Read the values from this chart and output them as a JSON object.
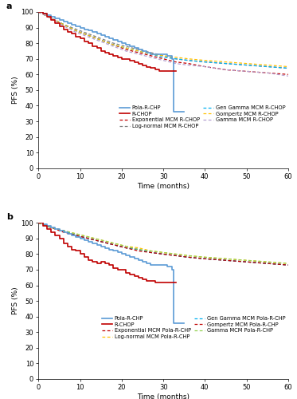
{
  "panel_a": {
    "title": "a",
    "pola_rchp_km": {
      "x": [
        0,
        1,
        2,
        3,
        4,
        5,
        6,
        7,
        8,
        9,
        10,
        11,
        12,
        13,
        14,
        15,
        16,
        17,
        18,
        19,
        20,
        21,
        22,
        23,
        24,
        25,
        26,
        27,
        28,
        29,
        30,
        31,
        32,
        32.5,
        33,
        34,
        35
      ],
      "y": [
        100,
        99,
        98,
        97,
        96,
        95,
        94,
        93,
        92,
        91,
        90,
        89,
        88,
        87,
        86,
        85,
        84,
        83,
        82,
        81,
        80,
        79,
        78,
        77,
        76,
        75,
        74,
        73,
        73,
        73,
        73,
        72,
        70,
        36,
        36,
        36,
        36
      ],
      "color": "#5b9bd5",
      "lw": 1.2,
      "ls": "solid",
      "label": "Pola-R-CHP"
    },
    "rchop_km": {
      "x": [
        0,
        1,
        2,
        3,
        4,
        5,
        6,
        7,
        8,
        9,
        10,
        11,
        12,
        13,
        14,
        15,
        16,
        17,
        18,
        19,
        20,
        21,
        22,
        23,
        24,
        25,
        26,
        27,
        28,
        29,
        30,
        31,
        32,
        33
      ],
      "y": [
        100,
        99,
        97,
        95,
        93,
        91,
        89,
        87,
        86,
        84,
        83,
        81,
        80,
        78,
        77,
        75,
        74,
        73,
        72,
        71,
        70,
        70,
        69,
        68,
        67,
        66,
        65,
        64,
        63,
        62,
        62,
        62,
        62,
        62
      ],
      "color": "#c00000",
      "lw": 1.2,
      "ls": "solid",
      "label": "R-CHOP"
    },
    "exp_rchop": {
      "x": [
        0,
        3,
        6,
        9,
        12,
        15,
        18,
        21,
        24,
        27,
        30,
        33,
        36,
        40,
        45,
        50,
        55,
        60
      ],
      "y": [
        100,
        96,
        92,
        88,
        85,
        82,
        79,
        76,
        74,
        72,
        70,
        68,
        67,
        65,
        63,
        62,
        61,
        60
      ],
      "color": "#c00000",
      "lw": 0.9,
      "ls": "dashed",
      "label": "Exponential MCM R-CHOP"
    },
    "lognorm_rchop": {
      "x": [
        0,
        3,
        6,
        9,
        12,
        15,
        18,
        21,
        24,
        27,
        30,
        33,
        36,
        40,
        45,
        50,
        55,
        60
      ],
      "y": [
        100,
        96,
        92,
        89,
        86,
        83,
        80,
        78,
        76,
        74,
        72,
        70,
        69,
        68,
        67,
        66,
        65,
        64
      ],
      "color": "#7f7f7f",
      "lw": 0.9,
      "ls": "dashed",
      "label": "Log-normal MCM R-CHOP"
    },
    "gengamma_rchop": {
      "x": [
        0,
        3,
        6,
        9,
        12,
        15,
        18,
        21,
        24,
        27,
        30,
        33,
        36,
        40,
        45,
        50,
        55,
        60
      ],
      "y": [
        100,
        96,
        92,
        88,
        85,
        82,
        79,
        77,
        75,
        73,
        71,
        70,
        69,
        68,
        67,
        66,
        65,
        64
      ],
      "color": "#00b0f0",
      "lw": 0.9,
      "ls": "dashed",
      "label": "Gen Gamma MCM R-CHOP"
    },
    "gompertz_rchop": {
      "x": [
        0,
        3,
        6,
        9,
        12,
        15,
        18,
        21,
        24,
        27,
        30,
        33,
        36,
        40,
        45,
        50,
        55,
        60
      ],
      "y": [
        100,
        96,
        92,
        88,
        85,
        82,
        79,
        77,
        75,
        73,
        72,
        71,
        70,
        69,
        68,
        67,
        66,
        65
      ],
      "color": "#ffc000",
      "lw": 0.9,
      "ls": "dashed",
      "label": "Gompertz MCM R-CHOP"
    },
    "gamma_rchop": {
      "x": [
        0,
        3,
        6,
        9,
        12,
        15,
        18,
        21,
        24,
        27,
        30,
        33,
        36,
        40,
        45,
        50,
        55,
        60
      ],
      "y": [
        100,
        96,
        91,
        87,
        84,
        81,
        78,
        75,
        73,
        71,
        69,
        67,
        66,
        65,
        63,
        62,
        61,
        59
      ],
      "color": "#b4a0d0",
      "lw": 0.9,
      "ls": "dashed",
      "label": "Gamma MCM R-CHOP"
    }
  },
  "panel_b": {
    "title": "b",
    "pola_rchp_km": {
      "x": [
        0,
        1,
        2,
        3,
        4,
        5,
        6,
        7,
        8,
        9,
        10,
        11,
        12,
        13,
        14,
        15,
        16,
        17,
        18,
        19,
        20,
        21,
        22,
        23,
        24,
        25,
        26,
        27,
        28,
        29,
        30,
        31,
        32,
        32.5,
        33,
        34,
        35
      ],
      "y": [
        100,
        99,
        98,
        97,
        96,
        95,
        94,
        93,
        92,
        91,
        90,
        89,
        88,
        87,
        86,
        85,
        84,
        83,
        82,
        81,
        80,
        79,
        78,
        77,
        76,
        75,
        74,
        73,
        73,
        73,
        73,
        72,
        70,
        36,
        36,
        36,
        36
      ],
      "color": "#5b9bd5",
      "lw": 1.2,
      "ls": "solid",
      "label": "Pola-R-CHP"
    },
    "rchop_km": {
      "x": [
        0,
        1,
        2,
        3,
        4,
        5,
        6,
        7,
        8,
        9,
        10,
        11,
        12,
        13,
        14,
        15,
        16,
        17,
        18,
        19,
        20,
        21,
        22,
        23,
        24,
        25,
        26,
        27,
        28,
        29,
        30,
        31,
        32,
        33
      ],
      "y": [
        100,
        98,
        96,
        94,
        92,
        90,
        87,
        85,
        83,
        82,
        80,
        78,
        76,
        75,
        74,
        75,
        74,
        73,
        71,
        70,
        70,
        68,
        67,
        66,
        65,
        64,
        63,
        63,
        62,
        62,
        62,
        62,
        62,
        62
      ],
      "color": "#c00000",
      "lw": 1.2,
      "ls": "solid",
      "label": "R-CHOP"
    },
    "exp_pola": {
      "x": [
        0,
        3,
        6,
        9,
        12,
        15,
        18,
        21,
        24,
        27,
        30,
        33,
        36,
        40,
        45,
        50,
        55,
        60
      ],
      "y": [
        100,
        97,
        95,
        92,
        90,
        88,
        86,
        84,
        83,
        81,
        80,
        79,
        78,
        77,
        76,
        75,
        74,
        73
      ],
      "color": "#c00000",
      "lw": 0.9,
      "ls": "dashed",
      "label": "Exponential MCM Pola-R-CHP"
    },
    "lognorm_pola": {
      "x": [
        0,
        3,
        6,
        9,
        12,
        15,
        18,
        21,
        24,
        27,
        30,
        33,
        36,
        40,
        45,
        50,
        55,
        60
      ],
      "y": [
        100,
        97,
        95,
        93,
        91,
        89,
        87,
        85,
        84,
        82,
        81,
        80,
        79,
        78,
        77,
        76,
        75,
        74
      ],
      "color": "#ffc000",
      "lw": 0.9,
      "ls": "dashed",
      "label": "Log-normal MCM Pola-R-CHP"
    },
    "gengamma_pola": {
      "x": [
        0,
        3,
        6,
        9,
        12,
        15,
        18,
        21,
        24,
        27,
        30,
        33,
        36,
        40,
        45,
        50,
        55,
        60
      ],
      "y": [
        100,
        97,
        95,
        92,
        90,
        88,
        86,
        84,
        83,
        81,
        80,
        79,
        78,
        77,
        76,
        75,
        74,
        73
      ],
      "color": "#00b0f0",
      "lw": 0.9,
      "ls": "dashed",
      "label": "Gen Gamma MCM Pola-R-CHP"
    },
    "gompertz_pola": {
      "x": [
        0,
        3,
        6,
        9,
        12,
        15,
        18,
        21,
        24,
        27,
        30,
        33,
        36,
        40,
        45,
        50,
        55,
        60
      ],
      "y": [
        100,
        97,
        94,
        92,
        90,
        88,
        86,
        84,
        82,
        81,
        80,
        79,
        78,
        77,
        76,
        75,
        74,
        73
      ],
      "color": "#c00000",
      "lw": 0.9,
      "ls": "dashed",
      "label": "Gompertz MCM Pola-R-CHP"
    },
    "gamma_pola": {
      "x": [
        0,
        3,
        6,
        9,
        12,
        15,
        18,
        21,
        24,
        27,
        30,
        33,
        36,
        40,
        45,
        50,
        55,
        60
      ],
      "y": [
        100,
        97,
        95,
        93,
        91,
        89,
        87,
        85,
        83,
        82,
        81,
        80,
        79,
        78,
        77,
        76,
        75,
        74
      ],
      "color": "#92d050",
      "lw": 0.9,
      "ls": "dashed",
      "label": "Gamma MCM Pola-R-CHP"
    }
  },
  "ylim": [
    0,
    100
  ],
  "xlim": [
    0,
    60
  ],
  "yticks": [
    0,
    10,
    20,
    30,
    40,
    50,
    60,
    70,
    80,
    90,
    100
  ],
  "xticks": [
    0,
    10,
    20,
    30,
    40,
    50,
    60
  ],
  "ylabel": "PFS (%)",
  "xlabel": "Time (months)",
  "bg_color": "#ffffff",
  "legend_a": [
    {
      "label": "Pola-R-CHP",
      "color": "#5b9bd5",
      "lw": 1.2,
      "ls": "solid"
    },
    {
      "label": "R-CHOP",
      "color": "#c00000",
      "lw": 1.2,
      "ls": "solid"
    },
    {
      "label": "Exponential MCM R-CHOP",
      "color": "#c00000",
      "lw": 0.9,
      "ls": "dashed"
    },
    {
      "label": "Log-normal MCM R-CHOP",
      "color": "#7f7f7f",
      "lw": 0.9,
      "ls": "dashed"
    },
    {
      "label": "Gen Gamma MCM R-CHOP",
      "color": "#00b0f0",
      "lw": 0.9,
      "ls": "dashed"
    },
    {
      "label": "Gompertz MCM R-CHOP",
      "color": "#ffc000",
      "lw": 0.9,
      "ls": "dashed"
    },
    {
      "label": "Gamma MCM R-CHOP",
      "color": "#b4a0d0",
      "lw": 0.9,
      "ls": "dashed"
    }
  ],
  "legend_b": [
    {
      "label": "Pola-R-CHP",
      "color": "#5b9bd5",
      "lw": 1.2,
      "ls": "solid"
    },
    {
      "label": "R-CHOP",
      "color": "#c00000",
      "lw": 1.2,
      "ls": "solid"
    },
    {
      "label": "Exponential MCM Pola-R-CHP",
      "color": "#c00000",
      "lw": 0.9,
      "ls": "dashed"
    },
    {
      "label": "Log-normal MCM Pola-R-CHP",
      "color": "#ffc000",
      "lw": 0.9,
      "ls": "dashed"
    },
    {
      "label": "Gen Gamma MCM Pola-R-CHP",
      "color": "#00b0f0",
      "lw": 0.9,
      "ls": "dashed"
    },
    {
      "label": "Gompertz MCM Pola-R-CHP",
      "color": "#c00000",
      "lw": 0.9,
      "ls": "dashed"
    },
    {
      "label": "Gamma MCM Pola-R-CHP",
      "color": "#92d050",
      "lw": 0.9,
      "ls": "dashed"
    }
  ]
}
